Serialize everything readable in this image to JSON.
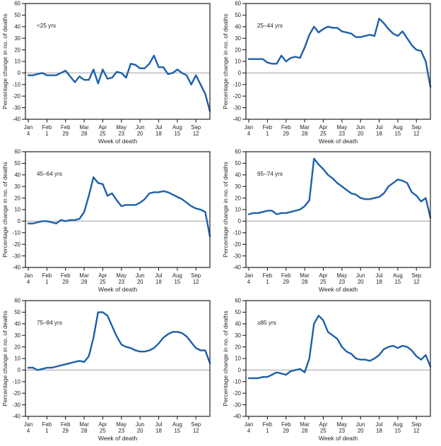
{
  "colors": {
    "line": "#1d5fa9",
    "zero_line": "#b3b3b3",
    "axis_and_text": "#231f20",
    "background": "#ffffff"
  },
  "chart_data": {
    "type": "line",
    "layout": "2x3 grid of small-multiple panels, one per age group",
    "xlabel": "Week of death",
    "ylabel": "Percentage change in no. of deaths",
    "ylim": [
      -40,
      60
    ],
    "ytick_step": 10,
    "ytick_labels": [
      "60",
      "50",
      "40",
      "30",
      "20",
      "10",
      "0",
      "-10",
      "-20",
      "-30",
      "-40"
    ],
    "zero_reference_line": true,
    "grid": false,
    "n_weeks": 40,
    "x_tick_week_index": [
      1,
      5,
      9,
      13,
      17,
      21,
      25,
      29,
      33,
      37
    ],
    "x_tick_labels": [
      [
        "Jan",
        "4"
      ],
      [
        "Feb",
        "1"
      ],
      [
        "Feb",
        "29"
      ],
      [
        "Mar",
        "28"
      ],
      [
        "Apr",
        "25"
      ],
      [
        "May",
        "23"
      ],
      [
        "Jun",
        "20"
      ],
      [
        "Jul",
        "18"
      ],
      [
        "Aug",
        "15"
      ],
      [
        "Sep",
        "12"
      ]
    ],
    "series": [
      {
        "name": "<25 yrs",
        "values": [
          -2,
          -2,
          -1,
          0,
          -2,
          -2,
          -2,
          0,
          2,
          -3,
          -8,
          -3,
          -6,
          -6,
          3,
          -9,
          3,
          -5,
          -4,
          1,
          0,
          -4,
          8,
          7,
          4,
          4,
          8,
          15,
          5,
          5,
          -1,
          0,
          3,
          0,
          -2,
          -10,
          -2,
          -10,
          -18,
          -33
        ]
      },
      {
        "name": "25–44 yrs",
        "values": [
          12,
          12,
          12,
          12,
          9,
          8,
          8,
          15,
          10,
          13,
          14,
          13,
          22,
          33,
          40,
          35,
          38,
          40,
          39,
          39,
          36,
          35,
          34,
          31,
          31,
          32,
          33,
          32,
          47,
          43,
          38,
          34,
          32,
          36,
          30,
          24,
          20,
          19,
          10,
          -12
        ]
      },
      {
        "name": "45–64 yrs",
        "values": [
          -2,
          -2,
          -1,
          0,
          0,
          -1,
          -2,
          1,
          0,
          1,
          1,
          2,
          8,
          22,
          38,
          33,
          32,
          22,
          24,
          18,
          13,
          14,
          14,
          14,
          16,
          19,
          24,
          25,
          25,
          26,
          25,
          23,
          21,
          19,
          16,
          13,
          11,
          10,
          8,
          -13
        ]
      },
      {
        "name": "65–74 yrs",
        "values": [
          6,
          7,
          7,
          8,
          9,
          9,
          6,
          7,
          7,
          8,
          9,
          10,
          13,
          18,
          54,
          49,
          45,
          40,
          37,
          33,
          30,
          27,
          24,
          23,
          20,
          19,
          19,
          20,
          21,
          24,
          30,
          33,
          36,
          35,
          33,
          25,
          22,
          17,
          20,
          3
        ]
      },
      {
        "name": "75–84 yrs",
        "values": [
          2,
          2,
          0,
          1,
          2,
          2,
          3,
          4,
          5,
          6,
          7,
          8,
          7,
          12,
          28,
          50,
          50,
          47,
          38,
          29,
          22,
          20,
          19,
          17,
          16,
          16,
          17,
          19,
          23,
          28,
          31,
          33,
          33,
          32,
          29,
          24,
          19,
          17,
          17,
          6
        ]
      },
      {
        "name": "≥85 yrs",
        "values": [
          -7,
          -7,
          -7,
          -6,
          -6,
          -4,
          -2,
          -3,
          -4,
          -1,
          0,
          1,
          -2,
          10,
          40,
          47,
          43,
          33,
          30,
          27,
          20,
          16,
          14,
          10,
          9,
          9,
          8,
          10,
          13,
          18,
          20,
          21,
          19,
          21,
          20,
          17,
          12,
          9,
          13,
          3
        ]
      }
    ]
  }
}
